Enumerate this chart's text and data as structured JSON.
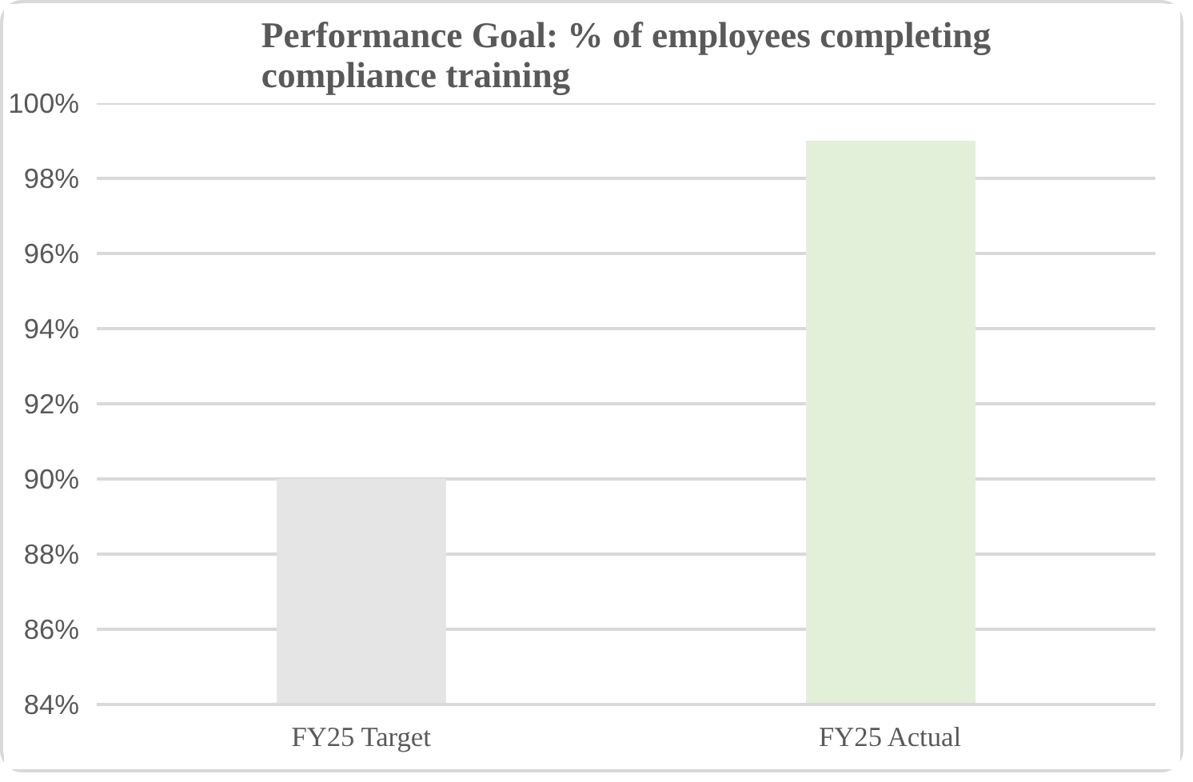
{
  "chart_data": {
    "type": "bar",
    "title": "Performance Goal: % of employees completing compliance training",
    "categories": [
      "FY25 Target",
      "FY25 Actual"
    ],
    "values": [
      90,
      99
    ],
    "colors": [
      "#e5e5e5",
      "#e2efd9"
    ],
    "ylim": [
      84,
      100
    ],
    "yticks": [
      {
        "value": 84,
        "label": "84%"
      },
      {
        "value": 86,
        "label": "86%"
      },
      {
        "value": 88,
        "label": "88%"
      },
      {
        "value": 90,
        "label": "90%"
      },
      {
        "value": 92,
        "label": "92%"
      },
      {
        "value": 94,
        "label": "94%"
      },
      {
        "value": 96,
        "label": "96%"
      },
      {
        "value": 98,
        "label": "98%"
      },
      {
        "value": 100,
        "label": "100%"
      }
    ],
    "grid": "y"
  }
}
